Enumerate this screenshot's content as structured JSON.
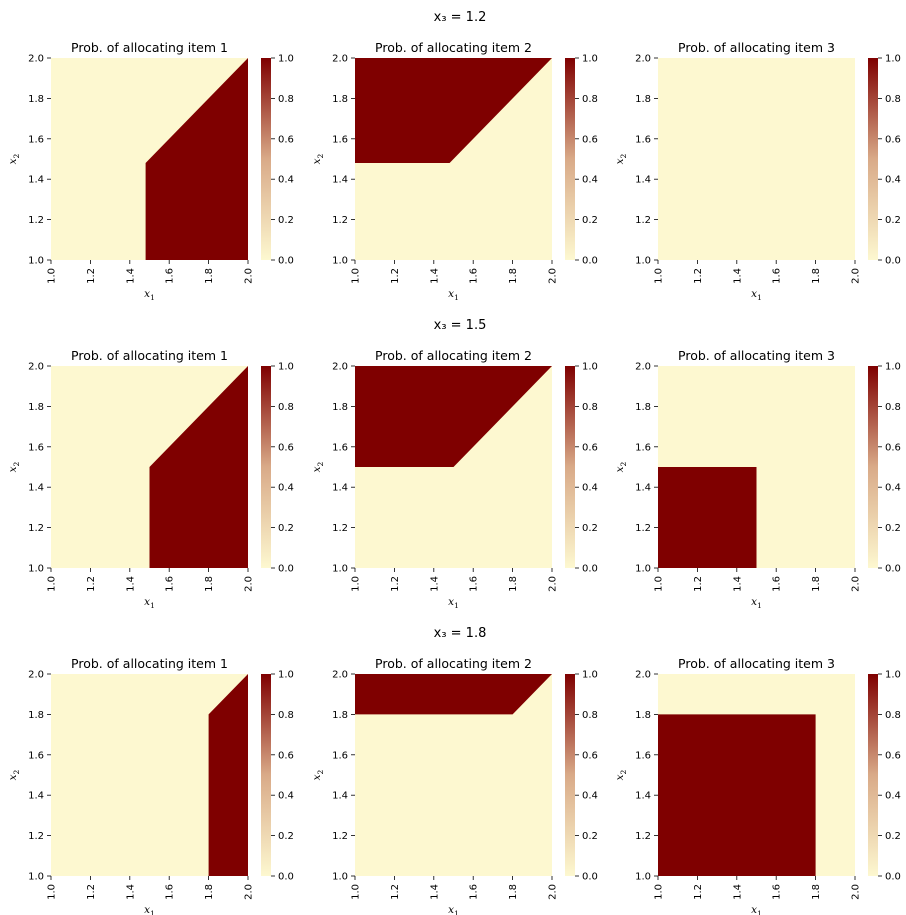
{
  "chart_data": {
    "type": "heatmap",
    "colormap": {
      "name": "OrRd-like",
      "low_color": "#fdf8d0",
      "mid_color": "#d9aa88",
      "high_color": "#7f0000",
      "range": [
        0.0,
        1.0
      ],
      "ticks": [
        "0.0",
        "0.2",
        "0.4",
        "0.6",
        "0.8",
        "1.0"
      ]
    },
    "x_ticks": [
      "1.0",
      "1.2",
      "1.4",
      "1.6",
      "1.8",
      "2.0"
    ],
    "y_ticks": [
      "1.0",
      "1.2",
      "1.4",
      "1.6",
      "1.8",
      "2.0"
    ],
    "xlim": [
      1.0,
      2.0
    ],
    "ylim": [
      1.0,
      2.0
    ],
    "xlabel": {
      "base": "x",
      "sub": "1"
    },
    "ylabel": {
      "base": "x",
      "sub": "2"
    },
    "rows": [
      {
        "suptitle": "x₃ = 1.2",
        "x3": 1.2,
        "panels": [
          {
            "title": "Prob. of allocating item 1",
            "region": [
              [
                1.48,
                1.0
              ],
              [
                2.0,
                1.0
              ],
              [
                2.0,
                2.0
              ],
              [
                1.48,
                1.48
              ]
            ],
            "value": 1.0
          },
          {
            "title": "Prob. of allocating item 2",
            "region": [
              [
                1.0,
                1.48
              ],
              [
                1.48,
                1.48
              ],
              [
                2.0,
                2.0
              ],
              [
                1.0,
                2.0
              ]
            ],
            "value": 1.0
          },
          {
            "title": "Prob. of allocating item 3",
            "region": [],
            "value": 1.0
          }
        ]
      },
      {
        "suptitle": "x₃ = 1.5",
        "x3": 1.5,
        "panels": [
          {
            "title": "Prob. of allocating item 1",
            "region": [
              [
                1.5,
                1.0
              ],
              [
                2.0,
                1.0
              ],
              [
                2.0,
                2.0
              ],
              [
                1.5,
                1.5
              ]
            ],
            "value": 1.0
          },
          {
            "title": "Prob. of allocating item 2",
            "region": [
              [
                1.0,
                1.5
              ],
              [
                1.5,
                1.5
              ],
              [
                2.0,
                2.0
              ],
              [
                1.0,
                2.0
              ]
            ],
            "value": 1.0
          },
          {
            "title": "Prob. of allocating item 3",
            "region": [
              [
                1.0,
                1.0
              ],
              [
                1.5,
                1.0
              ],
              [
                1.5,
                1.5
              ],
              [
                1.0,
                1.5
              ]
            ],
            "value": 1.0
          }
        ]
      },
      {
        "suptitle": "x₃ = 1.8",
        "x3": 1.8,
        "panels": [
          {
            "title": "Prob. of allocating item 1",
            "region": [
              [
                1.8,
                1.0
              ],
              [
                2.0,
                1.0
              ],
              [
                2.0,
                2.0
              ],
              [
                1.8,
                1.8
              ]
            ],
            "value": 1.0
          },
          {
            "title": "Prob. of allocating item 2",
            "region": [
              [
                1.0,
                1.8
              ],
              [
                1.8,
                1.8
              ],
              [
                2.0,
                2.0
              ],
              [
                1.0,
                2.0
              ]
            ],
            "value": 1.0
          },
          {
            "title": "Prob. of allocating item 3",
            "region": [
              [
                1.0,
                1.0
              ],
              [
                1.8,
                1.0
              ],
              [
                1.8,
                1.8
              ],
              [
                1.0,
                1.8
              ]
            ],
            "value": 1.0
          }
        ]
      }
    ]
  }
}
